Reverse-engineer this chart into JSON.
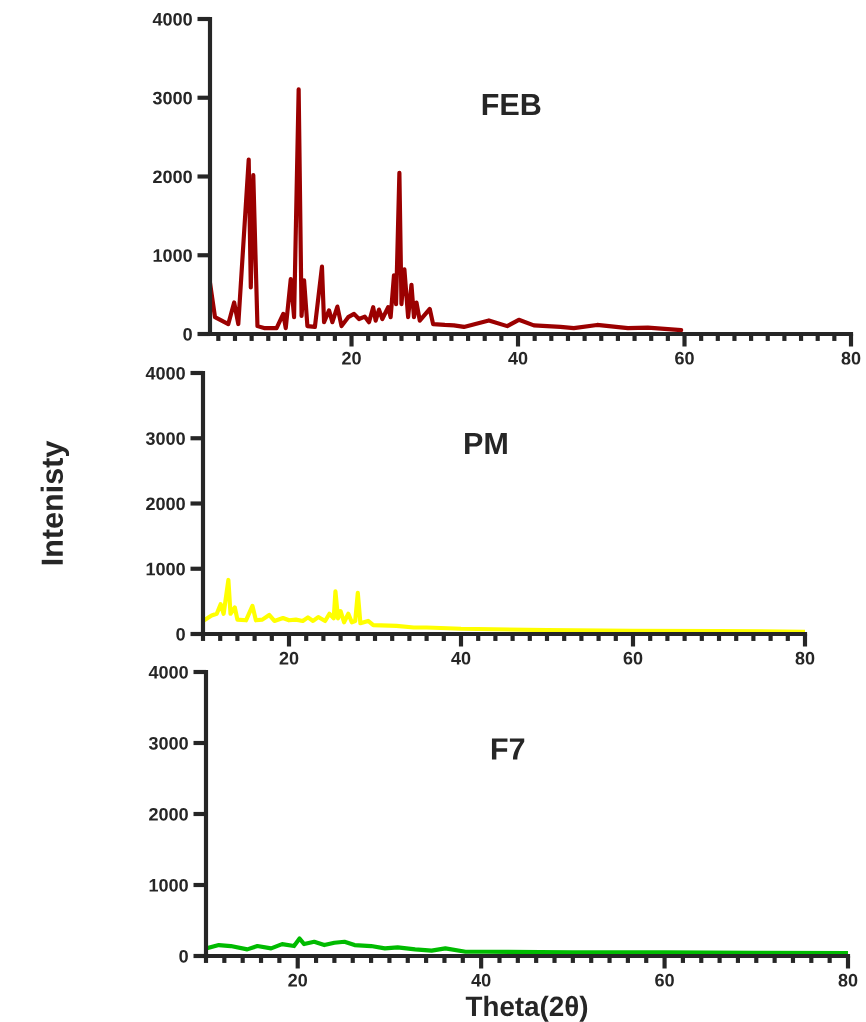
{
  "chart_data": [
    {
      "type": "line",
      "title": "FEB",
      "xlim": [
        3,
        80
      ],
      "ylim": [
        0,
        4000
      ],
      "xticks": [
        20,
        40,
        60,
        80
      ],
      "yticks": [
        0,
        1000,
        2000,
        3000,
        4000
      ],
      "series": [
        {
          "color": "#9b0000",
          "x": [
            3,
            3.6,
            5.2,
            5.9,
            6.4,
            7.65,
            7.9,
            8.2,
            8.7,
            9.5,
            11,
            11.8,
            12.1,
            12.7,
            13.1,
            13.65,
            14.0,
            14.3,
            14.7,
            15.6,
            16.45,
            16.7,
            17.3,
            17.7,
            18.3,
            18.8,
            19.6,
            20.3,
            20.9,
            21.6,
            22.1,
            22.6,
            22.9,
            23.3,
            23.7,
            24.4,
            24.7,
            25.1,
            25.35,
            25.75,
            26.0,
            26.35,
            26.8,
            27.2,
            27.5,
            27.8,
            28.2,
            29.4,
            29.8,
            31.2,
            32.3,
            33.5,
            36.5,
            38.7,
            40.1,
            41.9,
            45.1,
            46.7,
            49.5,
            53.2,
            55.6,
            59.6
          ],
          "values": [
            650,
            214,
            126,
            400,
            126,
            2214,
            590,
            2017,
            100,
            75,
            75,
            255,
            75,
            696,
            214,
            3107,
            230,
            683,
            100,
            90,
            855,
            150,
            300,
            150,
            348,
            100,
            214,
            255,
            190,
            220,
            150,
            340,
            170,
            310,
            190,
            340,
            214,
            746,
            380,
            2047,
            380,
            822,
            214,
            625,
            214,
            400,
            170,
            318,
            126,
            115,
            110,
            90,
            172,
            100,
            180,
            110,
            90,
            75,
            115,
            75,
            80,
            50
          ]
        }
      ]
    },
    {
      "type": "line",
      "title": "PM",
      "ylabel": "Intenisty",
      "xlim": [
        10,
        80
      ],
      "ylim": [
        0,
        4000
      ],
      "xticks": [
        20,
        40,
        60,
        80
      ],
      "yticks": [
        0,
        1000,
        2000,
        3000,
        4000
      ],
      "series": [
        {
          "color": "#ffff00",
          "x": [
            10.1,
            11,
            11.6,
            12.05,
            12.4,
            12.95,
            13.2,
            13.7,
            14.0,
            15.0,
            15.75,
            16.15,
            16.9,
            17.7,
            18.3,
            19.3,
            20.0,
            20.8,
            21.6,
            22.2,
            22.8,
            23.4,
            24.2,
            24.7,
            25.2,
            25.4,
            25.7,
            26.0,
            26.4,
            26.9,
            27.3,
            27.7,
            28.0,
            28.3,
            29.2,
            29.8,
            32.5,
            34.5,
            36.0,
            40,
            50,
            60,
            70,
            80
          ],
          "values": [
            208,
            283,
            310,
            456,
            310,
            828,
            310,
            406,
            220,
            210,
            431,
            210,
            220,
            292,
            200,
            245,
            210,
            220,
            200,
            255,
            200,
            260,
            200,
            310,
            240,
            654,
            240,
            350,
            180,
            310,
            180,
            200,
            630,
            165,
            200,
            135,
            125,
            100,
            100,
            80,
            60,
            50,
            45,
            35
          ]
        }
      ]
    },
    {
      "type": "line",
      "title": "F7",
      "xlabel": "Theta(2θ)",
      "xlim": [
        10,
        80
      ],
      "ylim": [
        0,
        4000
      ],
      "xticks": [
        20,
        40,
        60,
        80
      ],
      "yticks": [
        0,
        1000,
        2000,
        3000,
        4000
      ],
      "series": [
        {
          "color": "#00bb00",
          "x": [
            10,
            11.4,
            12.7,
            14.5,
            15.6,
            17.1,
            18.3,
            19.6,
            20.2,
            20.7,
            21.8,
            22.9,
            24.0,
            25.1,
            26.2,
            28.0,
            29.5,
            30.9,
            32.8,
            34.6,
            36.1,
            38.3,
            40.5,
            50,
            60,
            70,
            80
          ],
          "values": [
            107,
            154,
            140,
            93,
            140,
            107,
            168,
            140,
            247,
            168,
            200,
            154,
            186,
            200,
            154,
            140,
            107,
            121,
            93,
            75,
            107,
            60,
            60,
            50,
            50,
            45,
            40
          ]
        }
      ]
    }
  ]
}
